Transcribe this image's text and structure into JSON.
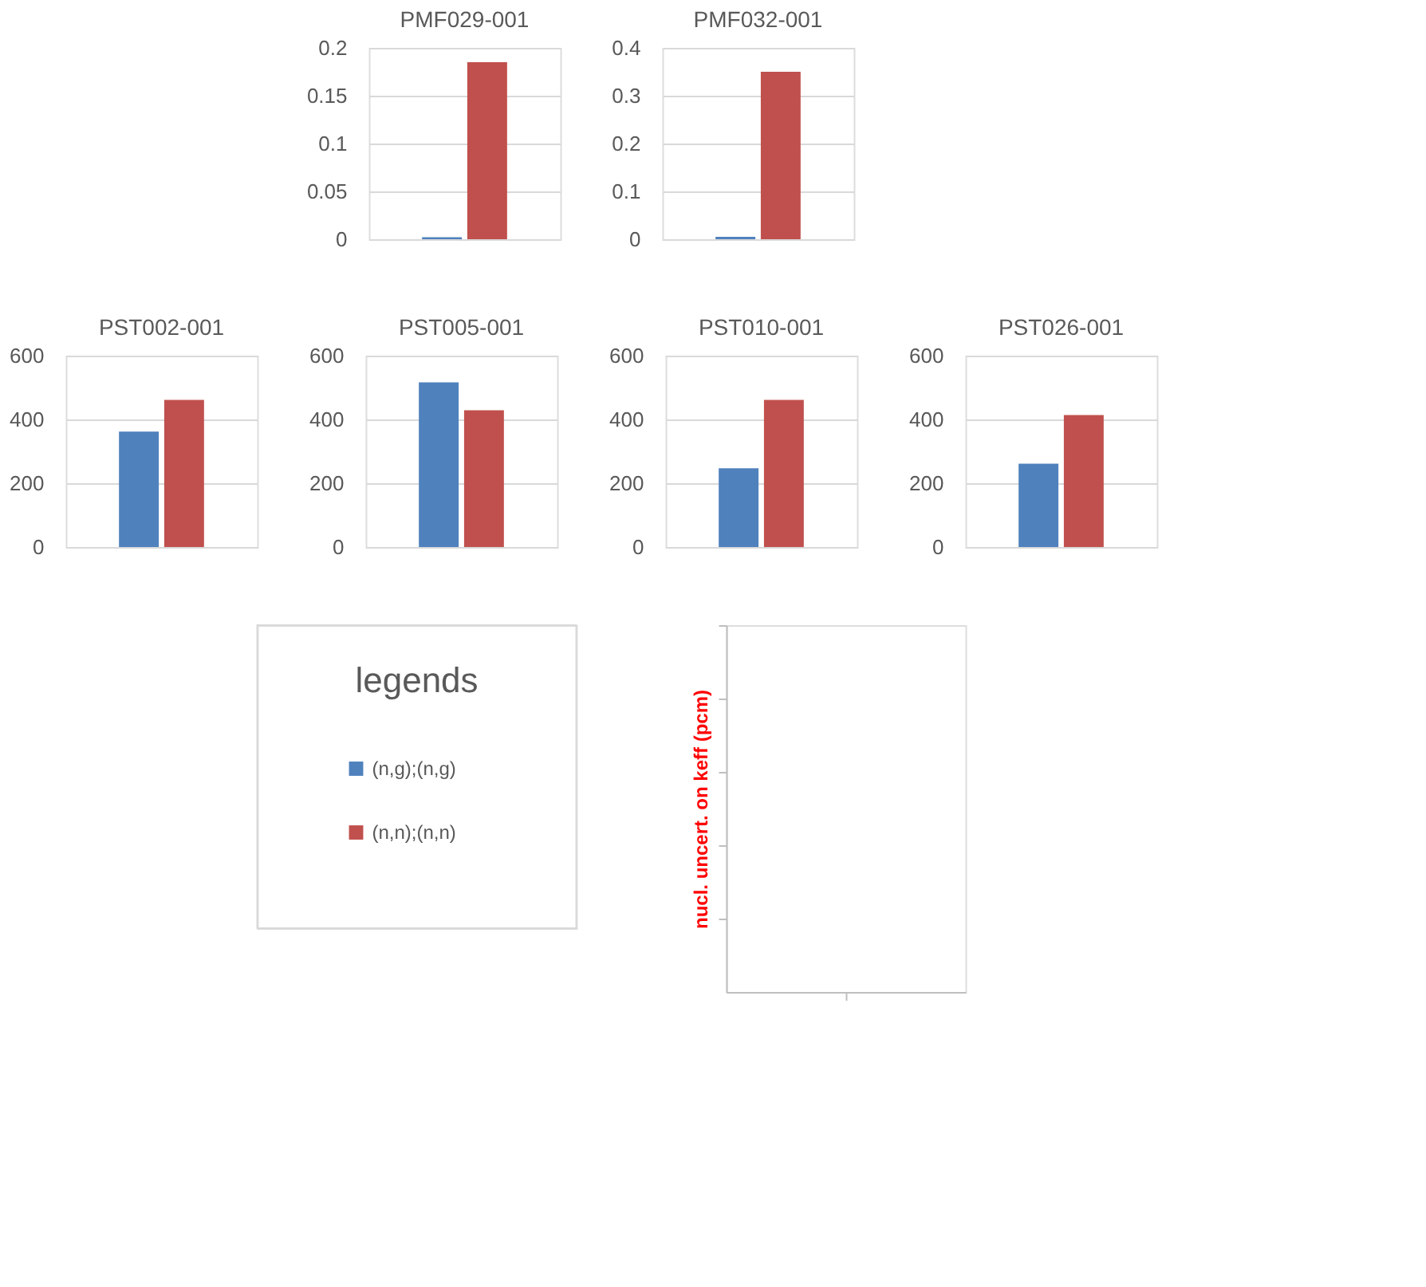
{
  "chart_data": [
    {
      "type": "bar",
      "title": "PMF029-001",
      "categories": [
        null
      ],
      "series": [
        {
          "color": "#4f81bd",
          "values": [
            0.002
          ]
        },
        {
          "color": "#c0504d",
          "values": [
            0.185
          ]
        }
      ],
      "ylim": [
        0,
        0.2
      ],
      "yticks": [
        0,
        0.05,
        0.1,
        0.15,
        0.2
      ],
      "grid": "y",
      "tick_labels": "y"
    },
    {
      "type": "bar",
      "title": "PMF032-001",
      "categories": [
        null
      ],
      "series": [
        {
          "color": "#4f81bd",
          "values": [
            0.005
          ]
        },
        {
          "color": "#c0504d",
          "values": [
            0.35
          ]
        }
      ],
      "ylim": [
        0,
        0.4
      ],
      "yticks": [
        0,
        0.1,
        0.2,
        0.3,
        0.4
      ],
      "grid": "y",
      "tick_labels": "y"
    },
    {
      "type": "bar",
      "title": "PST002-001",
      "categories": [
        null
      ],
      "series": [
        {
          "color": "#4f81bd",
          "values": [
            362
          ]
        },
        {
          "color": "#c0504d",
          "values": [
            461
          ]
        }
      ],
      "ylim": [
        0,
        600
      ],
      "yticks": [
        0,
        200,
        400,
        600
      ],
      "grid": "y",
      "tick_labels": "y"
    },
    {
      "type": "bar",
      "title": "PST005-001",
      "categories": [
        null
      ],
      "series": [
        {
          "color": "#4f81bd",
          "values": [
            516
          ]
        },
        {
          "color": "#c0504d",
          "values": [
            429
          ]
        }
      ],
      "ylim": [
        0,
        600
      ],
      "yticks": [
        0,
        200,
        400,
        600
      ],
      "grid": "y",
      "tick_labels": "y"
    },
    {
      "type": "bar",
      "title": "PST010-001",
      "categories": [
        null
      ],
      "series": [
        {
          "color": "#4f81bd",
          "values": [
            247
          ]
        },
        {
          "color": "#c0504d",
          "values": [
            461
          ]
        }
      ],
      "ylim": [
        0,
        600
      ],
      "yticks": [
        0,
        200,
        400,
        600
      ],
      "grid": "y",
      "tick_labels": "y"
    },
    {
      "type": "bar",
      "title": "PST026-001",
      "categories": [
        null
      ],
      "series": [
        {
          "color": "#4f81bd",
          "values": [
            261
          ]
        },
        {
          "color": "#c0504d",
          "values": [
            414
          ]
        }
      ],
      "ylim": [
        0,
        600
      ],
      "yticks": [
        0,
        200,
        400,
        600
      ],
      "grid": "y",
      "tick_labels": "y"
    },
    {
      "type": "other",
      "legend_title": "legends",
      "legend": "left",
      "ylabel": "nucl. uncert. on keff (pcm)",
      "series": [
        {
          "name": "(n,g);(n,g)",
          "color": "#4f81bd"
        },
        {
          "name": "(n,n);(n,n)",
          "color": "#c0504d"
        }
      ]
    }
  ]
}
